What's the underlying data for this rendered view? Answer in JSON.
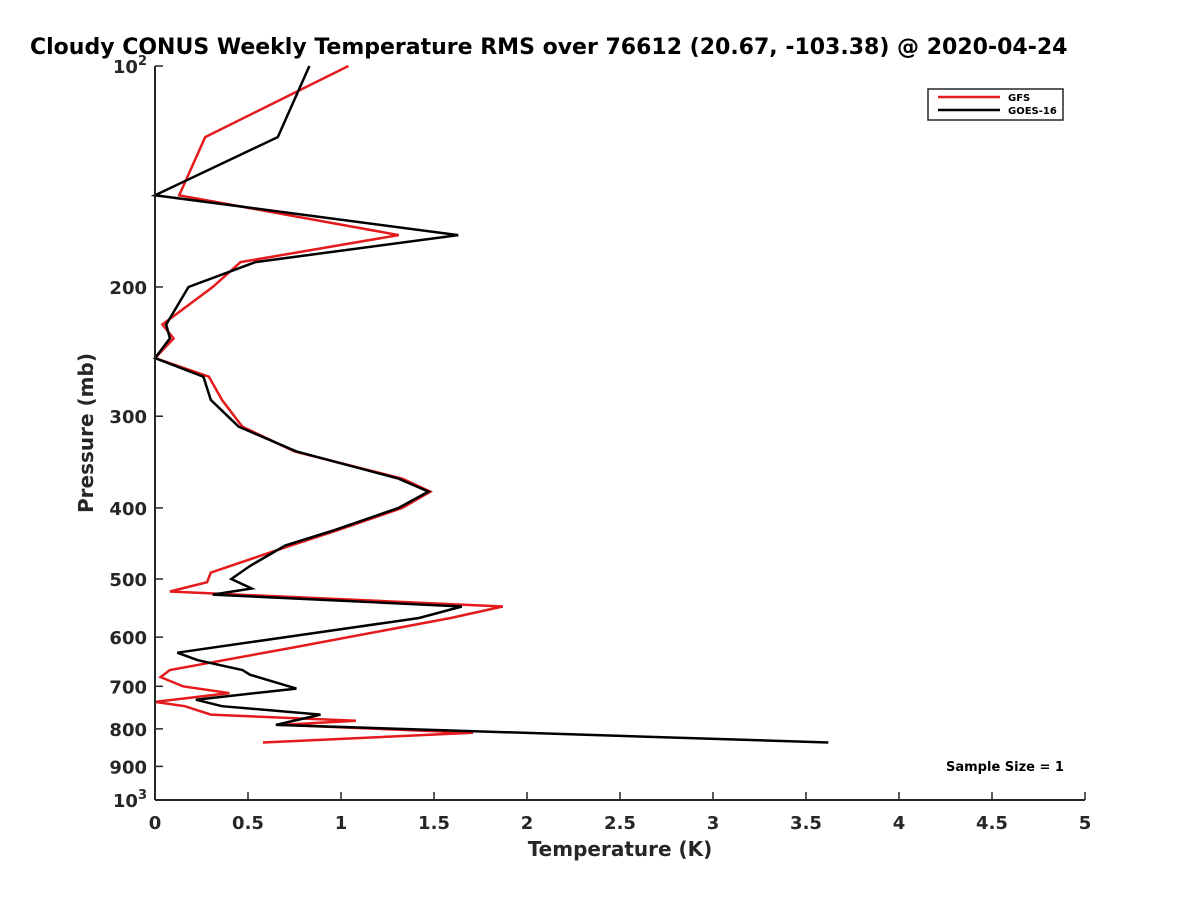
{
  "chart_data": {
    "type": "line",
    "title": "Cloudy CONUS Weekly Temperature RMS over 76612 (20.67, -103.38) @ 2020-04-24",
    "xlabel": "Temperature (K)",
    "ylabel": "Pressure (mb)",
    "xlim": [
      0,
      5
    ],
    "ylim": [
      100,
      1000
    ],
    "y_scale": "log",
    "y_reversed": true,
    "grid": false,
    "legend_position": "top-right",
    "x_ticks": [
      "0",
      "0.5",
      "1",
      "1.5",
      "2",
      "2.5",
      "3",
      "3.5",
      "4",
      "4.5",
      "5"
    ],
    "x_tick_values": [
      0,
      0.5,
      1,
      1.5,
      2,
      2.5,
      3,
      3.5,
      4,
      4.5,
      5
    ],
    "y_ticks": [
      {
        "base": "10",
        "exp": "2",
        "value": 100
      },
      {
        "label": "200",
        "value": 200
      },
      {
        "label": "300",
        "value": 300
      },
      {
        "label": "400",
        "value": 400
      },
      {
        "label": "500",
        "value": 500
      },
      {
        "label": "600",
        "value": 600
      },
      {
        "label": "700",
        "value": 700
      },
      {
        "label": "800",
        "value": 800
      },
      {
        "label": "900",
        "value": 900
      },
      {
        "base": "10",
        "exp": "3",
        "value": 1000
      }
    ],
    "series": [
      {
        "name": "GFS",
        "color": "#e41a1c",
        "points": [
          [
            1.04,
            100
          ],
          [
            0.27,
            125
          ],
          [
            0.13,
            150
          ],
          [
            1.31,
            170
          ],
          [
            0.46,
            185
          ],
          [
            0.31,
            200
          ],
          [
            0.04,
            225
          ],
          [
            0.1,
            235
          ],
          [
            0.0,
            250
          ],
          [
            0.29,
            265
          ],
          [
            0.36,
            285
          ],
          [
            0.47,
            310
          ],
          [
            0.75,
            335
          ],
          [
            1.33,
            365
          ],
          [
            1.48,
            380
          ],
          [
            1.33,
            400
          ],
          [
            0.97,
            430
          ],
          [
            0.73,
            450
          ],
          [
            0.3,
            490
          ],
          [
            0.28,
            505
          ],
          [
            0.08,
            520
          ],
          [
            1.87,
            545
          ],
          [
            1.59,
            565
          ],
          [
            0.74,
            620
          ],
          [
            0.08,
            665
          ],
          [
            0.03,
            680
          ],
          [
            0.15,
            700
          ],
          [
            0.4,
            715
          ],
          [
            0.0,
            735
          ],
          [
            0.16,
            745
          ],
          [
            0.3,
            765
          ],
          [
            1.08,
            780
          ],
          [
            0.68,
            790
          ],
          [
            1.71,
            810
          ],
          [
            0.58,
            835
          ]
        ]
      },
      {
        "name": "GOES-16",
        "color": "#000000",
        "points": [
          [
            0.83,
            100
          ],
          [
            0.66,
            125
          ],
          [
            0.0,
            150
          ],
          [
            1.63,
            170
          ],
          [
            0.54,
            185
          ],
          [
            0.18,
            200
          ],
          [
            0.06,
            225
          ],
          [
            0.08,
            235
          ],
          [
            0.0,
            250
          ],
          [
            0.26,
            265
          ],
          [
            0.3,
            285
          ],
          [
            0.45,
            310
          ],
          [
            0.76,
            335
          ],
          [
            1.31,
            365
          ],
          [
            1.47,
            380
          ],
          [
            1.31,
            400
          ],
          [
            0.95,
            430
          ],
          [
            0.7,
            450
          ],
          [
            0.51,
            480
          ],
          [
            0.41,
            500
          ],
          [
            0.52,
            515
          ],
          [
            0.31,
            525
          ],
          [
            1.65,
            545
          ],
          [
            1.42,
            565
          ],
          [
            0.12,
            630
          ],
          [
            0.23,
            645
          ],
          [
            0.47,
            665
          ],
          [
            0.51,
            675
          ],
          [
            0.76,
            705
          ],
          [
            0.22,
            730
          ],
          [
            0.36,
            745
          ],
          [
            0.89,
            765
          ],
          [
            0.65,
            790
          ],
          [
            3.62,
            835
          ]
        ]
      }
    ],
    "annotation": "Sample Size = 1"
  }
}
